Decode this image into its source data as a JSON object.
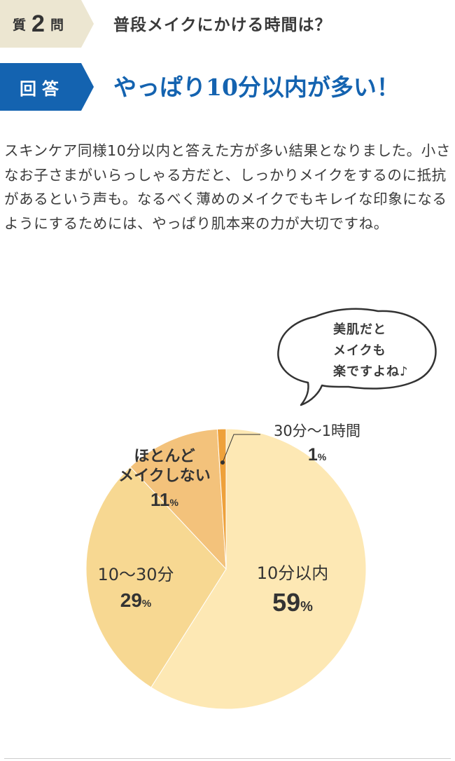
{
  "question": {
    "prefix": "質",
    "number": "2",
    "suffix": "問",
    "text": "普段メイクにかける時間は？"
  },
  "answer": {
    "label": "回答",
    "text": "やっぱり10分以内が多い！"
  },
  "body_text": "スキンケア同様10分以内と答えた方が多い結果となりました。小さなお子さまがいらっしゃる方だと、しっかりメイクをするのに抵抗があるという声も。なるべく薄めのメイクでもキレイな印象になるようにするためには、やっぱり肌本来の力が大切ですね。",
  "bubble": {
    "lines": [
      "美肌だと",
      "メイクも",
      "楽ですよね♪"
    ]
  },
  "colors": {
    "question_tag_bg": "#ece6d1",
    "answer_tag_bg": "#1463b0",
    "answer_text": "#1463b0"
  },
  "chart_data": {
    "type": "pie",
    "title": "",
    "slices": [
      {
        "label": "10分以内",
        "value": 59,
        "color": "#fde8b4"
      },
      {
        "label": "10〜30分",
        "value": 29,
        "color": "#f7d892"
      },
      {
        "label": "ほとんどメイクしない",
        "value": 11,
        "color": "#f3c27b"
      },
      {
        "label": "30分〜1時間",
        "value": 1,
        "color": "#eea13a"
      }
    ],
    "labels": [
      {
        "lines": [
          "10分以内"
        ],
        "value": "59"
      },
      {
        "lines": [
          "10〜30分"
        ],
        "value": "29"
      },
      {
        "lines": [
          "ほとんど",
          "メイクしない"
        ],
        "value": "11"
      },
      {
        "lines": [
          "30分〜1時間"
        ],
        "value": "1"
      }
    ],
    "unit": "%"
  }
}
